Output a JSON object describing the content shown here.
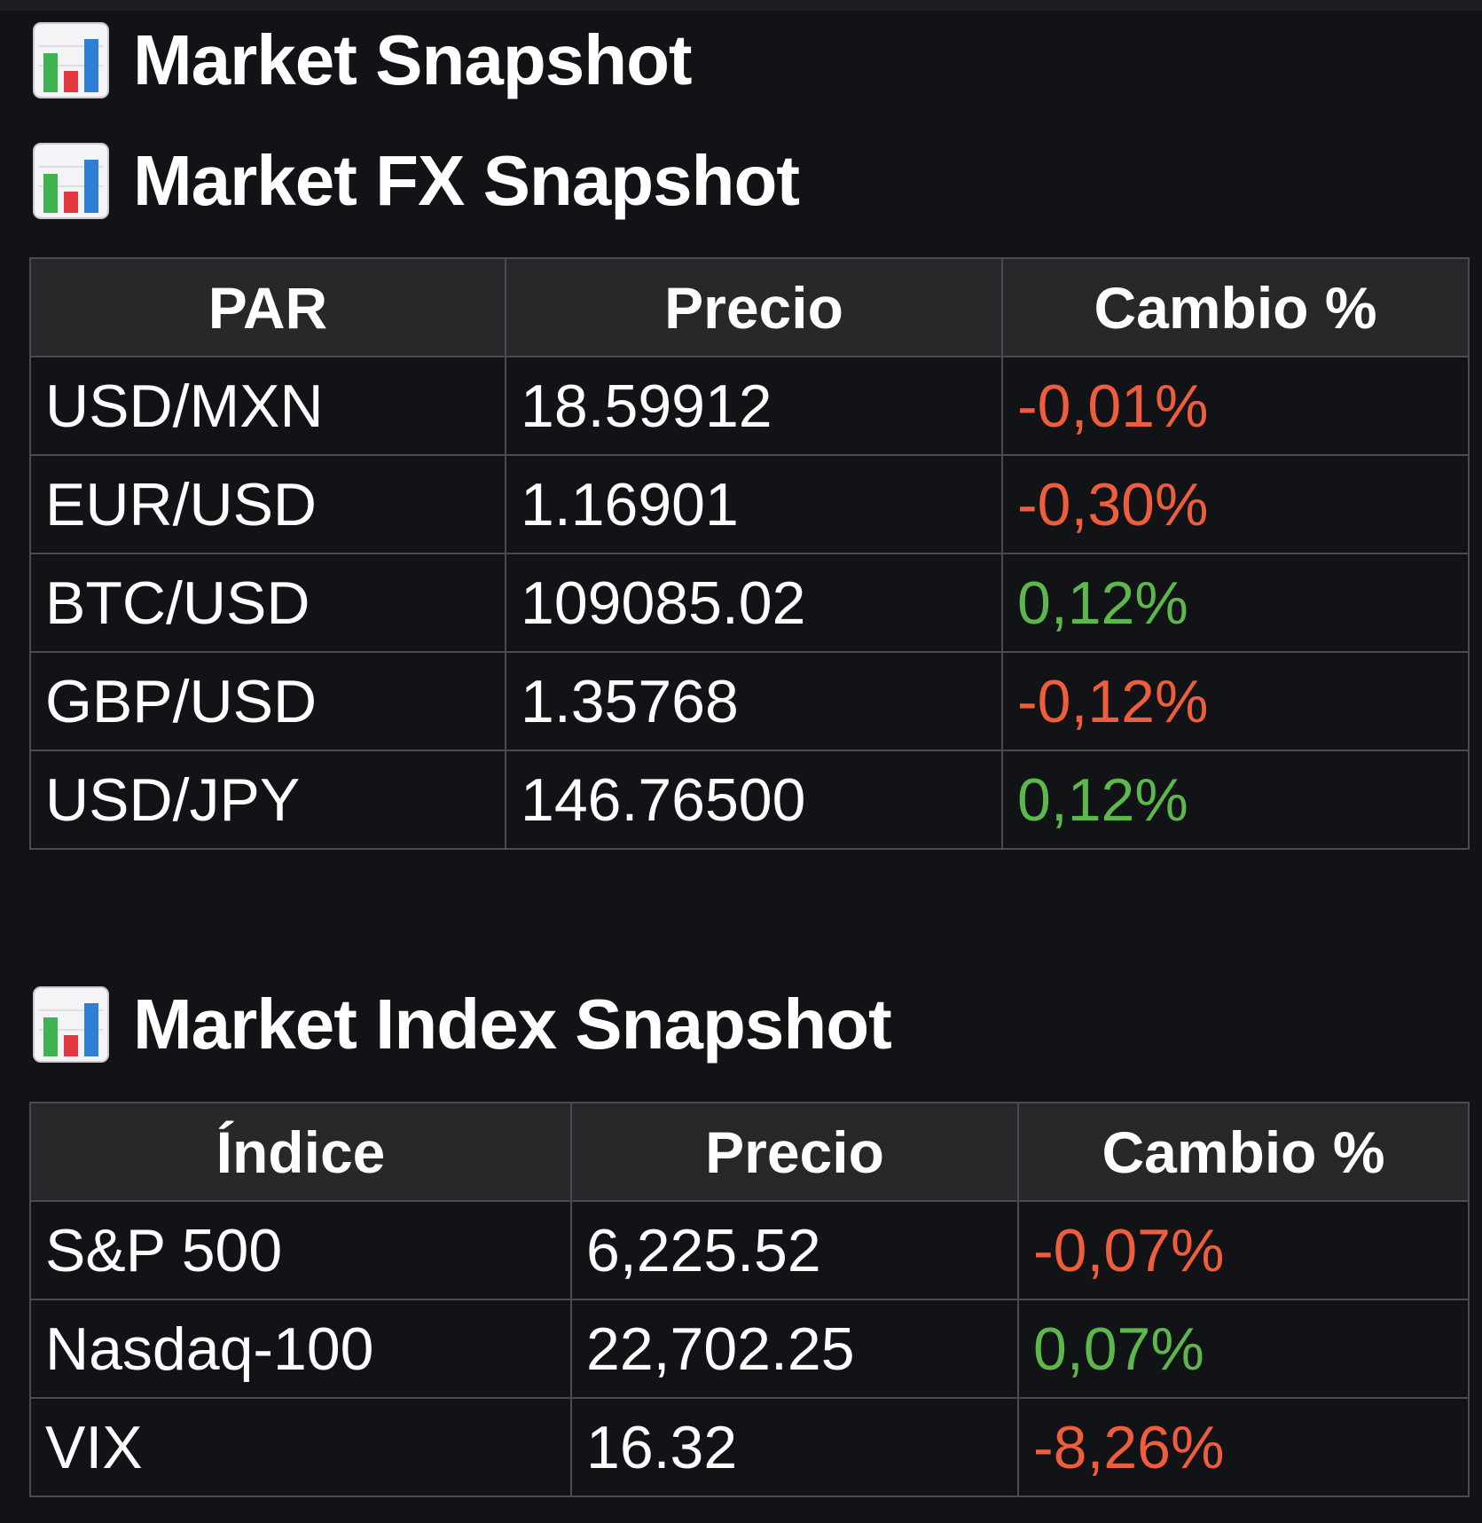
{
  "colors": {
    "background": "#121317",
    "header_bg": "#28282a",
    "border": "#4a4b50",
    "text": "#ffffff",
    "negative": "#ee5e3c",
    "positive": "#5cb84c"
  },
  "headings": {
    "main": "Market Snapshot",
    "fx": "Market FX Snapshot",
    "index": "Market Index Snapshot",
    "icon": "bar-chart-icon"
  },
  "fx_table": {
    "headers": [
      "PAR",
      "Precio",
      "Cambio %"
    ],
    "rows": [
      {
        "pair": "USD/MXN",
        "price": "18.59912",
        "change": "-0,01%",
        "direction": "down"
      },
      {
        "pair": "EUR/USD",
        "price": "1.16901",
        "change": "-0,30%",
        "direction": "down"
      },
      {
        "pair": "BTC/USD",
        "price": "109085.02",
        "change": "0,12%",
        "direction": "up"
      },
      {
        "pair": "GBP/USD",
        "price": "1.35768",
        "change": "-0,12%",
        "direction": "down"
      },
      {
        "pair": "USD/JPY",
        "price": "146.76500",
        "change": "0,12%",
        "direction": "up"
      }
    ]
  },
  "index_table": {
    "headers": [
      "Índice",
      "Precio",
      "Cambio %"
    ],
    "rows": [
      {
        "index": "S&P 500",
        "price": "6,225.52",
        "change": "-0,07%",
        "direction": "down"
      },
      {
        "index": "Nasdaq-100",
        "price": "22,702.25",
        "change": "0,07%",
        "direction": "up"
      },
      {
        "index": "VIX",
        "price": "16.32",
        "change": "-8,26%",
        "direction": "down"
      }
    ]
  }
}
